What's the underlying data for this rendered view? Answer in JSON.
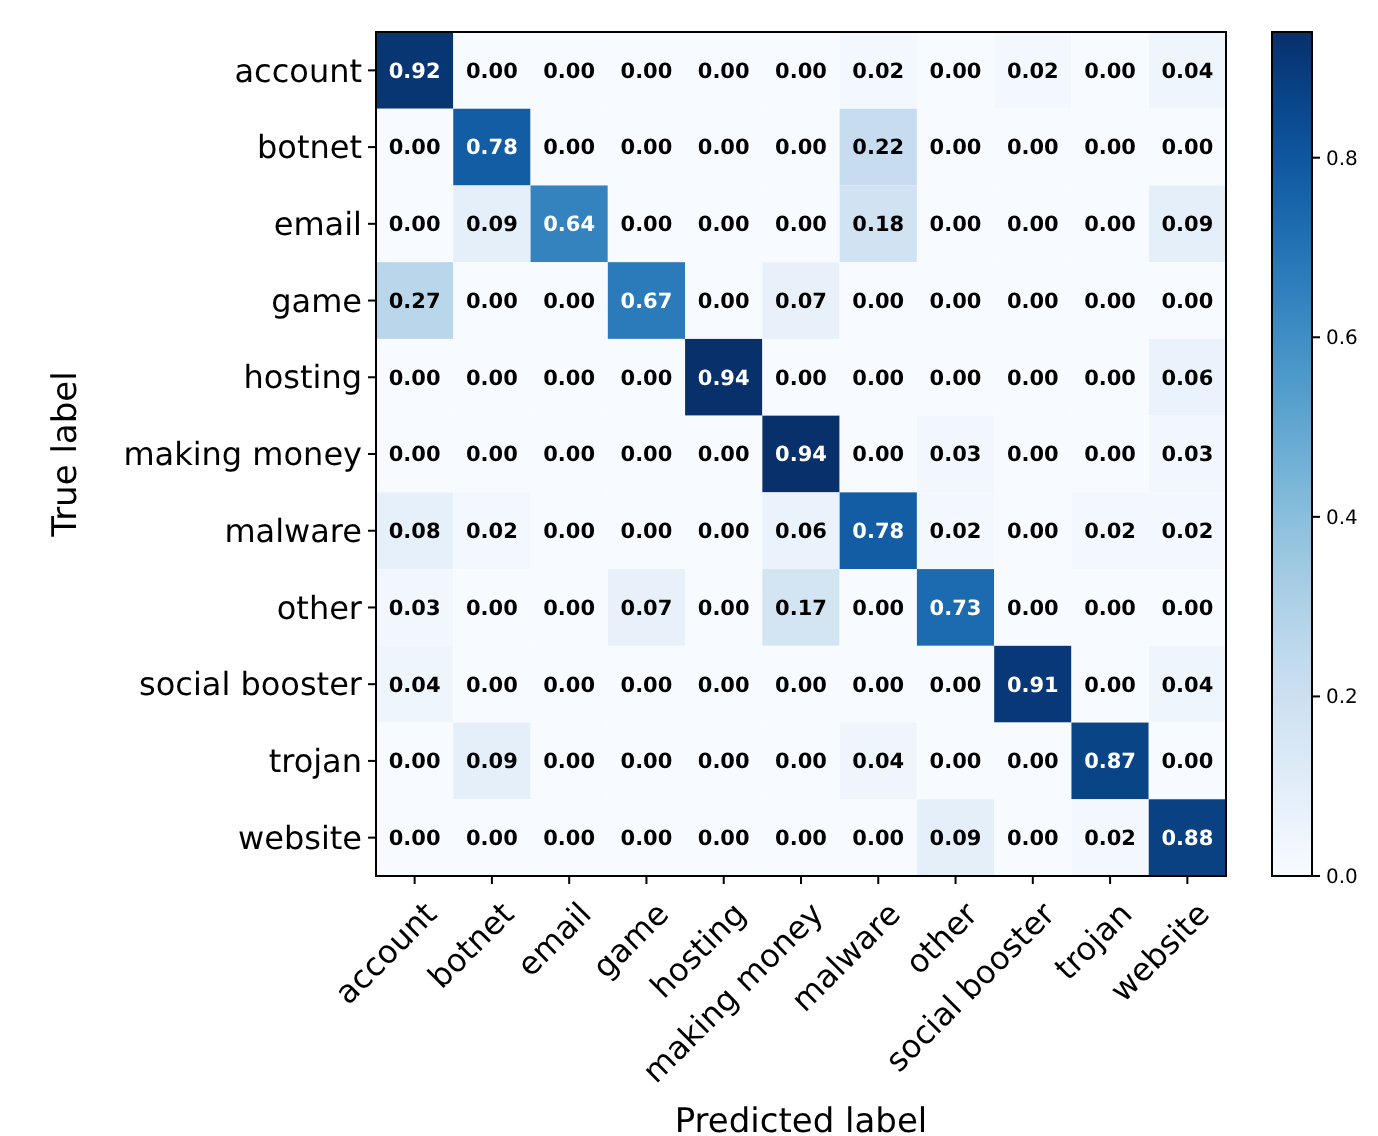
{
  "chart_data": {
    "type": "heatmap",
    "xlabel": "Predicted label",
    "ylabel": "True label",
    "categories": [
      "account",
      "botnet",
      "email",
      "game",
      "hosting",
      "making money",
      "malware",
      "other",
      "social booster",
      "trojan",
      "website"
    ],
    "y_categories": [
      "account",
      "botnet",
      "email",
      "game",
      "hosting",
      "making money",
      "malware",
      "other",
      "social booster",
      "trojan",
      "website"
    ],
    "cells": [
      [
        0.92,
        0,
        0,
        0,
        0,
        0,
        0.02,
        0,
        0.02,
        0,
        0.04
      ],
      [
        0,
        0.78,
        0,
        0,
        0,
        0,
        0.22,
        0,
        0,
        0,
        0
      ],
      [
        0,
        0.09,
        0.64,
        0,
        0,
        0,
        0.18,
        0,
        0,
        0,
        0.09
      ],
      [
        0.27,
        0,
        0,
        0.67,
        0,
        0.07,
        0,
        0,
        0,
        0,
        0
      ],
      [
        0,
        0,
        0,
        0,
        0.94,
        0,
        0,
        0,
        0,
        0,
        0.06
      ],
      [
        0,
        0,
        0,
        0,
        0,
        0.94,
        0,
        0.03,
        0,
        0,
        0.03
      ],
      [
        0.08,
        0.02,
        0,
        0,
        0,
        0.06,
        0.78,
        0.02,
        0,
        0.02,
        0.02
      ],
      [
        0.03,
        0,
        0,
        0.07,
        0,
        0.17,
        0,
        0.73,
        0,
        0,
        0
      ],
      [
        0.04,
        0,
        0,
        0,
        0,
        0,
        0,
        0,
        0.91,
        0,
        0.04
      ],
      [
        0,
        0.09,
        0,
        0,
        0,
        0,
        0.04,
        0,
        0,
        0.87,
        0
      ],
      [
        0,
        0,
        0,
        0,
        0,
        0,
        0,
        0.09,
        0,
        0.02,
        0.88
      ]
    ],
    "cell_labels": [
      [
        "0.92",
        "0.00",
        "0.00",
        "0.00",
        "0.00",
        "0.00",
        "0.02",
        "0.00",
        "0.02",
        "0.00",
        "0.04"
      ],
      [
        "0.00",
        "0.78",
        "0.00",
        "0.00",
        "0.00",
        "0.00",
        "0.22",
        "0.00",
        "0.00",
        "0.00",
        "0.00"
      ],
      [
        "0.00",
        "0.09",
        "0.64",
        "0.00",
        "0.00",
        "0.00",
        "0.18",
        "0.00",
        "0.00",
        "0.00",
        "0.09"
      ],
      [
        "0.27",
        "0.00",
        "0.00",
        "0.67",
        "0.00",
        "0.07",
        "0.00",
        "0.00",
        "0.00",
        "0.00",
        "0.00"
      ],
      [
        "0.00",
        "0.00",
        "0.00",
        "0.00",
        "0.94",
        "0.00",
        "0.00",
        "0.00",
        "0.00",
        "0.00",
        "0.06"
      ],
      [
        "0.00",
        "0.00",
        "0.00",
        "0.00",
        "0.00",
        "0.94",
        "0.00",
        "0.03",
        "0.00",
        "0.00",
        "0.03"
      ],
      [
        "0.08",
        "0.02",
        "0.00",
        "0.00",
        "0.00",
        "0.06",
        "0.78",
        "0.02",
        "0.00",
        "0.02",
        "0.02"
      ],
      [
        "0.03",
        "0.00",
        "0.00",
        "0.07",
        "0.00",
        "0.17",
        "0.00",
        "0.73",
        "0.00",
        "0.00",
        "0.00"
      ],
      [
        "0.04",
        "0.00",
        "0.00",
        "0.00",
        "0.00",
        "0.00",
        "0.00",
        "0.00",
        "0.91",
        "0.00",
        "0.04"
      ],
      [
        "0.00",
        "0.09",
        "0.00",
        "0.00",
        "0.00",
        "0.00",
        "0.04",
        "0.00",
        "0.00",
        "0.87",
        "0.00"
      ],
      [
        "0.00",
        "0.00",
        "0.00",
        "0.00",
        "0.00",
        "0.00",
        "0.00",
        "0.09",
        "0.00",
        "0.02",
        "0.88"
      ]
    ],
    "clim": [
      0,
      0.94
    ],
    "cticks": [
      {
        "value": 0,
        "label": "0.0"
      },
      0.2,
      0.4,
      0.6,
      0.8
    ]
  }
}
